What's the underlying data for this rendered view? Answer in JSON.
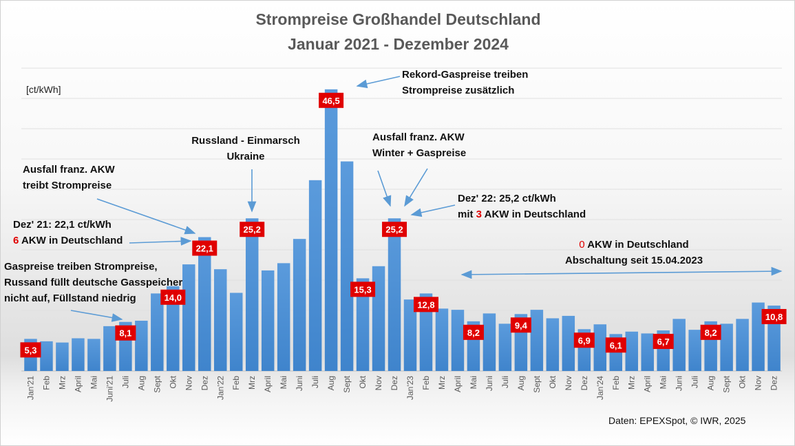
{
  "chart_data": {
    "type": "bar",
    "title": "Strompreise Großhandel Deutschland",
    "subtitle": "Januar 2021 - Dezember 2024",
    "ylabel": "[ct/kWh]",
    "xlabel": "",
    "ylim": [
      0,
      50
    ],
    "grid": true,
    "categories": [
      "Jan'21",
      "Feb",
      "Mrz",
      "April",
      "Mai",
      "Juni'21",
      "Juli",
      "Aug",
      "Sept",
      "Okt",
      "Nov",
      "Dez",
      "Jan'22",
      "Feb",
      "Mrz",
      "April",
      "Mai",
      "Juni",
      "Juli",
      "Aug",
      "Sept",
      "Okt",
      "Nov",
      "Dez",
      "Jan'23",
      "Feb",
      "Mrz",
      "April",
      "Mai",
      "Juni",
      "Juli",
      "Aug",
      "Sept",
      "Okt",
      "Nov",
      "Dez",
      "Jan'24",
      "Feb",
      "Mrz",
      "April",
      "Mai",
      "Juni",
      "Juli",
      "Aug",
      "Sept",
      "Okt",
      "Nov",
      "Dez"
    ],
    "values": [
      5.3,
      4.9,
      4.7,
      5.4,
      5.3,
      7.4,
      8.1,
      8.3,
      12.8,
      14.0,
      17.6,
      22.1,
      16.8,
      12.9,
      25.2,
      16.6,
      17.8,
      21.8,
      31.5,
      46.5,
      34.6,
      15.3,
      17.3,
      25.2,
      11.8,
      12.8,
      10.3,
      10.1,
      8.2,
      9.5,
      7.8,
      9.4,
      10.1,
      8.7,
      9.1,
      6.9,
      7.7,
      6.1,
      6.5,
      6.2,
      6.7,
      8.6,
      6.8,
      8.2,
      7.8,
      8.6,
      11.3,
      10.8
    ],
    "data_labels": {
      "0": "5,3",
      "6": "8,1",
      "9": "14,0",
      "11": "22,1",
      "14": "25,2",
      "19": "46,5",
      "21": "15,3",
      "23": "25,2",
      "25": "12,8",
      "28": "8,2",
      "31": "9,4",
      "35": "6,9",
      "37": "6,1",
      "40": "6,7",
      "43": "8,2",
      "47": "10,8"
    },
    "colors": {
      "bar": "#4a8fd6",
      "label_bg": "#e00000",
      "label_text": "#ffffff"
    }
  },
  "annotations": {
    "rekord": [
      "Rekord-Gaspreise treiben",
      "Strompreise zusätzlich"
    ],
    "russland": [
      "Russland - Einmarsch",
      "Ukraine"
    ],
    "ausfall21": [
      "Ausfall franz. AKW",
      "treibt Strompreise"
    ],
    "dez21": {
      "line1": "Dez' 21: 22,1 ct/kWh",
      "num": "6",
      "rest": " AKW in Deutschland"
    },
    "gas21": [
      "Gaspreise treiben Strompreise,",
      "Russand füllt deutsche Gasspeicher",
      "nicht auf, Füllstand niedrig"
    ],
    "ausfall22": [
      "Ausfall franz. AKW",
      "Winter + Gaspreise"
    ],
    "dez22": {
      "line1": "Dez' 22: 25,2 ct/kWh",
      "pre": "mit ",
      "num": "3",
      "rest": " AKW in Deutschland"
    },
    "akw0": {
      "num": "0",
      "rest": " AKW in Deutschland",
      "line2": "Abschaltung seit 15.04.2023"
    }
  },
  "source": "Daten: EPEXSpot, © IWR, 2025"
}
